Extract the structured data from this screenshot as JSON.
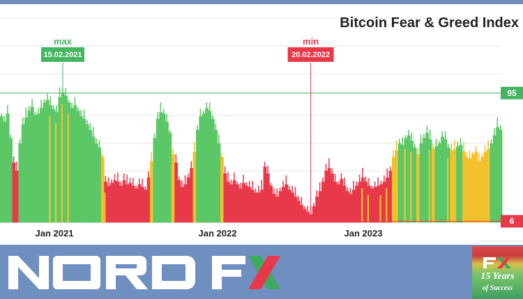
{
  "chart_data": {
    "type": "bar",
    "title": "Bitcoin Fear & Greed Index",
    "x_tick_labels": [
      "Jan 2021",
      "Jan 2022",
      "Jan 2023"
    ],
    "ylim": [
      0,
      100
    ],
    "grid": true,
    "max_marker": {
      "label": "max",
      "date": "15.02.2021",
      "value": 95
    },
    "min_marker": {
      "label": "min",
      "date": "20.02.2022",
      "value": 6
    },
    "value_labels": [
      "95",
      "6"
    ],
    "colors": {
      "greed": "#5cc766",
      "neutral": "#f2c22e",
      "fear": "#e8394b",
      "marker_max": "#44b560",
      "marker_min": "#e8394b",
      "grid": "#e4e4e4"
    },
    "zones": {
      "greed_from": 55,
      "neutral_from": 45
    },
    "series": [
      {
        "values": [
          78,
          74,
          80,
          62,
          44,
          38,
          58,
          72,
          77,
          82,
          85,
          79,
          80,
          84,
          88,
          90,
          86,
          83,
          81,
          92,
          95,
          93,
          88,
          84,
          86,
          82,
          78,
          76,
          72,
          68,
          63,
          58,
          55,
          48,
          30,
          27,
          29,
          31,
          30,
          27,
          31,
          28,
          29,
          27,
          25,
          28,
          26,
          24,
          33,
          45,
          62,
          76,
          81,
          80,
          74,
          66,
          50,
          44,
          31,
          26,
          28,
          33,
          40,
          52,
          68,
          78,
          80,
          84,
          82,
          76,
          68,
          58,
          48,
          36,
          30,
          28,
          31,
          28,
          25,
          29,
          27,
          26,
          24,
          22,
          22,
          24,
          41,
          36,
          27,
          21,
          19,
          23,
          26,
          28,
          24,
          22,
          19,
          16,
          13,
          10,
          8,
          6,
          12,
          19,
          23,
          30,
          38,
          40,
          36,
          30,
          28,
          32,
          27,
          23,
          21,
          24,
          27,
          30,
          33,
          30,
          27,
          25,
          26,
          27,
          28,
          30,
          33,
          38,
          48,
          53,
          58,
          57,
          62,
          64,
          60,
          55,
          50,
          58,
          62,
          66,
          61,
          54,
          56,
          58,
          63,
          61,
          55,
          53,
          54,
          56,
          57,
          52,
          48,
          47,
          50,
          52,
          45,
          48,
          52,
          54,
          58,
          64,
          70,
          68
        ]
      }
    ]
  },
  "branding": {
    "logo_name": "NORD FX",
    "badge_fx": "FX",
    "badge_line1": "15 Years",
    "badge_line2": "of Success"
  }
}
